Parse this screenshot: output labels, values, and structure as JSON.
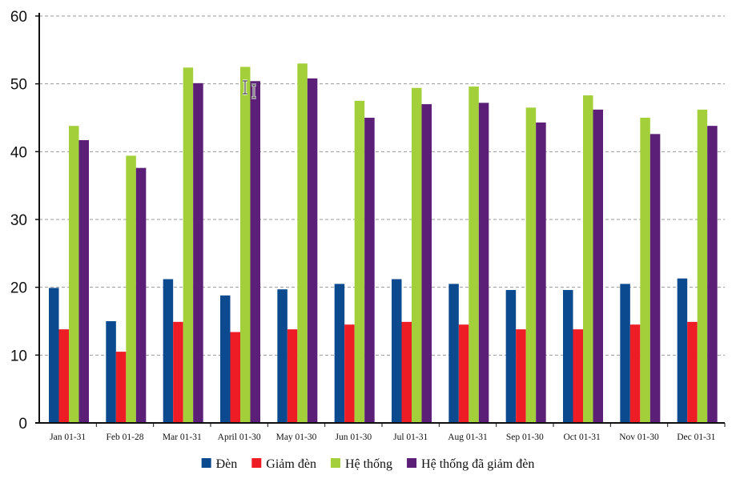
{
  "chart_data": {
    "type": "bar",
    "title": "",
    "xlabel": "",
    "ylabel": "",
    "ylim": [
      0,
      60
    ],
    "yticks": [
      "0",
      "10",
      "20",
      "30",
      "40",
      "50",
      "60"
    ],
    "ytick_values": [
      0,
      10,
      20,
      30,
      40,
      50,
      60
    ],
    "grid": true,
    "legend_position": "bottom",
    "categories": [
      "Jan 01-31",
      "Feb 01-28",
      "Mar 01-31",
      "April 01-30",
      "May 01-30",
      "Jun 01-30",
      "Jul 01-31",
      "Aug 01-31",
      "Sep 01-30",
      "Oct 01-31",
      "Nov 01-30",
      "Dec 01-31"
    ],
    "series": [
      {
        "name": "Đèn",
        "color": "#0b4a8f",
        "values": [
          19.9,
          15.0,
          21.2,
          18.8,
          19.7,
          20.5,
          21.2,
          20.5,
          19.6,
          19.6,
          20.5,
          21.3
        ]
      },
      {
        "name": "Giảm đèn",
        "color": "#ee1c25",
        "values": [
          13.8,
          10.5,
          14.9,
          13.4,
          13.8,
          14.5,
          14.9,
          14.5,
          13.8,
          13.8,
          14.5,
          14.9
        ]
      },
      {
        "name": "Hệ thống",
        "color": "#a3cf3b",
        "values": [
          43.8,
          39.4,
          52.4,
          52.5,
          53.0,
          47.5,
          49.4,
          49.6,
          46.5,
          48.3,
          45.0,
          46.2
        ]
      },
      {
        "name": "Hệ thống đã giảm đèn",
        "color": "#5b1f78",
        "values": [
          41.7,
          37.6,
          50.1,
          50.4,
          50.8,
          45.0,
          47.0,
          47.2,
          44.3,
          46.2,
          42.6,
          43.8
        ]
      }
    ]
  },
  "colors": {
    "grid": "#9a9a9a",
    "axis": "#111111"
  },
  "icons": {
    "cursor": "text-cursor-icon"
  }
}
